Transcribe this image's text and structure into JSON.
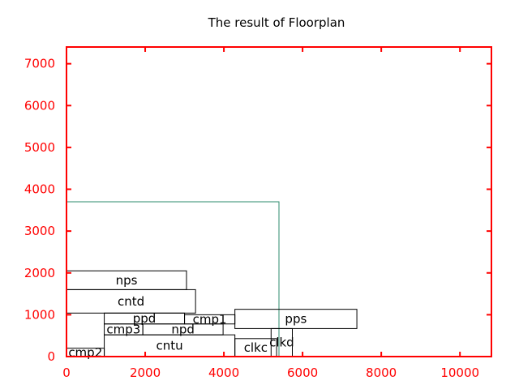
{
  "chart_data": {
    "type": "floorplan",
    "title": "The result of Floorplan",
    "xlabel": "",
    "ylabel": "",
    "xlim": [
      0,
      10800
    ],
    "ylim": [
      0,
      7400
    ],
    "x_ticks": [
      0,
      2000,
      4000,
      6000,
      8000,
      10000
    ],
    "y_ticks": [
      0,
      1000,
      2000,
      3000,
      4000,
      5000,
      6000,
      7000
    ],
    "grid": false,
    "colors": {
      "axis": "#ff0000",
      "tick_labels": "#ff0000",
      "block_border": "#000000",
      "outline": "#2e8b6e"
    },
    "outline": {
      "x": 0,
      "y": 0,
      "w": 5400,
      "h": 3700
    },
    "blocks": [
      {
        "name": "nps",
        "x": 0,
        "y": 1600,
        "w": 3050,
        "h": 450
      },
      {
        "name": "cntd",
        "x": 0,
        "y": 1040,
        "w": 3280,
        "h": 560
      },
      {
        "name": "ppd",
        "x": 960,
        "y": 780,
        "w": 2040,
        "h": 260
      },
      {
        "name": "cmp1",
        "x": 3000,
        "y": 780,
        "w": 1280,
        "h": 220
      },
      {
        "name": "pps",
        "x": 4280,
        "y": 670,
        "w": 3100,
        "h": 460
      },
      {
        "name": "cmp3",
        "x": 960,
        "y": 520,
        "w": 980,
        "h": 260
      },
      {
        "name": "npd",
        "x": 1940,
        "y": 520,
        "w": 2040,
        "h": 260
      },
      {
        "name": "clkd",
        "x": 5200,
        "y": 0,
        "w": 540,
        "h": 670
      },
      {
        "name": "cntu",
        "x": 960,
        "y": 0,
        "w": 3320,
        "h": 520
      },
      {
        "name": "clkc",
        "x": 4280,
        "y": 0,
        "w": 1060,
        "h": 430
      },
      {
        "name": "cmp2",
        "x": 0,
        "y": 0,
        "w": 960,
        "h": 200
      }
    ]
  }
}
